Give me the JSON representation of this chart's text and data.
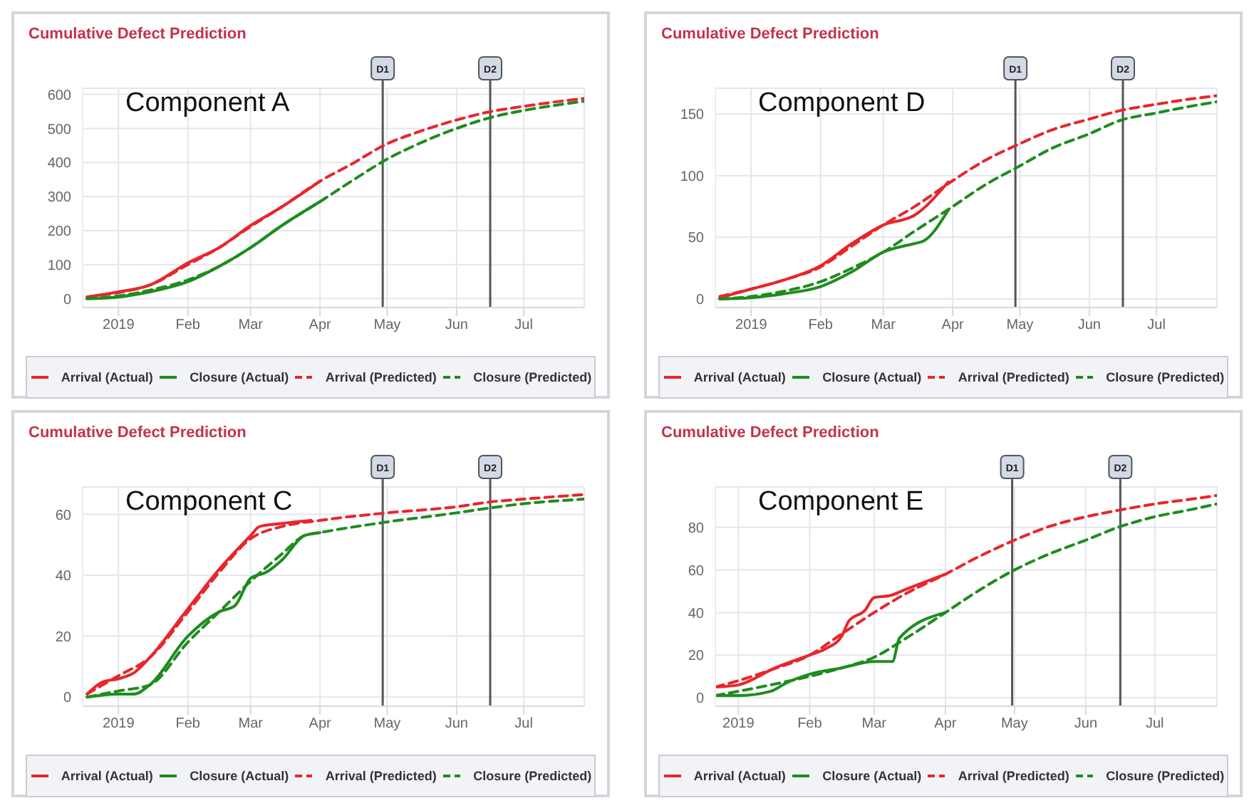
{
  "chart_data": [
    {
      "type": "line",
      "title": "Cumulative Defect Prediction",
      "annotations": [
        "Component A"
      ],
      "xlim": [
        "2018-12-16",
        "2019-07-28"
      ],
      "xticks": [
        {
          "value": "2019-01-01",
          "label": "2019"
        },
        {
          "value": "2019-02-01",
          "label": "Feb"
        },
        {
          "value": "2019-03-01",
          "label": "Mar"
        },
        {
          "value": "2019-04-01",
          "label": "Apr"
        },
        {
          "value": "2019-05-01",
          "label": "May"
        },
        {
          "value": "2019-06-01",
          "label": "Jun"
        },
        {
          "value": "2019-07-01",
          "label": "Jul"
        }
      ],
      "ylim": [
        -26,
        618
      ],
      "yticks": [
        0,
        100,
        200,
        300,
        400,
        500,
        600
      ],
      "grid": true,
      "legend": "bottom",
      "marker": "none",
      "ref_lines": [
        {
          "axis": "x",
          "value": "2019-04-29",
          "label": "D1",
          "color": "#555555"
        },
        {
          "axis": "x",
          "value": "2019-06-16",
          "label": "D2",
          "color": "#555555"
        }
      ],
      "series": [
        {
          "name": "Arrival (Actual)",
          "color": "#e8262b",
          "line_style": "solid",
          "x": [
            "2018-12-18",
            "2019-01-01",
            "2019-01-15",
            "2019-02-01",
            "2019-02-15",
            "2019-03-01",
            "2019-03-15",
            "2019-04-01"
          ],
          "values": [
            5,
            20,
            40,
            105,
            150,
            215,
            270,
            345
          ]
        },
        {
          "name": "Closure (Actual)",
          "color": "#1e8c1e",
          "line_style": "solid",
          "x": [
            "2018-12-18",
            "2019-01-01",
            "2019-01-15",
            "2019-02-01",
            "2019-02-15",
            "2019-03-01",
            "2019-03-15",
            "2019-04-01"
          ],
          "values": [
            0,
            5,
            20,
            50,
            95,
            150,
            215,
            285
          ]
        },
        {
          "name": "Arrival (Predicted)",
          "color": "#e8262b",
          "line_style": "dashed",
          "x": [
            "2018-12-18",
            "2019-01-01",
            "2019-01-15",
            "2019-02-01",
            "2019-02-15",
            "2019-03-01",
            "2019-03-15",
            "2019-04-01",
            "2019-04-15",
            "2019-05-01",
            "2019-05-15",
            "2019-06-01",
            "2019-06-15",
            "2019-07-01",
            "2019-07-15",
            "2019-07-28"
          ],
          "values": [
            5,
            18,
            40,
            100,
            150,
            212,
            270,
            345,
            395,
            455,
            490,
            525,
            548,
            565,
            578,
            588
          ]
        },
        {
          "name": "Closure (Predicted)",
          "color": "#1e8c1e",
          "line_style": "dashed",
          "x": [
            "2018-12-18",
            "2019-01-01",
            "2019-01-15",
            "2019-02-01",
            "2019-02-15",
            "2019-03-01",
            "2019-03-15",
            "2019-04-01",
            "2019-04-15",
            "2019-05-01",
            "2019-05-15",
            "2019-06-01",
            "2019-06-15",
            "2019-07-01",
            "2019-07-15",
            "2019-07-28"
          ],
          "values": [
            0,
            8,
            25,
            55,
            95,
            150,
            215,
            285,
            345,
            410,
            455,
            500,
            530,
            553,
            568,
            580
          ]
        }
      ]
    },
    {
      "type": "line",
      "title": "Cumulative Defect Prediction",
      "annotations": [
        "Component D"
      ],
      "xlim": [
        "2018-12-16",
        "2019-07-28"
      ],
      "xticks": [
        {
          "value": "2019-01-01",
          "label": "2019"
        },
        {
          "value": "2019-02-01",
          "label": "Feb"
        },
        {
          "value": "2019-03-01",
          "label": "Mar"
        },
        {
          "value": "2019-04-01",
          "label": "Apr"
        },
        {
          "value": "2019-05-01",
          "label": "May"
        },
        {
          "value": "2019-06-01",
          "label": "Jun"
        },
        {
          "value": "2019-07-01",
          "label": "Jul"
        }
      ],
      "ylim": [
        -7,
        171
      ],
      "yticks": [
        0,
        50,
        100,
        150
      ],
      "grid": true,
      "legend": "bottom",
      "marker": "none",
      "ref_lines": [
        {
          "axis": "x",
          "value": "2019-04-29",
          "label": "D1",
          "color": "#555555"
        },
        {
          "axis": "x",
          "value": "2019-06-16",
          "label": "D2",
          "color": "#555555"
        }
      ],
      "series": [
        {
          "name": "Arrival (Actual)",
          "color": "#e8262b",
          "line_style": "solid",
          "x": [
            "2018-12-18",
            "2019-01-01",
            "2019-01-15",
            "2019-02-01",
            "2019-02-15",
            "2019-03-01",
            "2019-03-15",
            "2019-03-30"
          ],
          "values": [
            1,
            8,
            15,
            27,
            45,
            60,
            68,
            95
          ]
        },
        {
          "name": "Closure (Actual)",
          "color": "#1e8c1e",
          "line_style": "solid",
          "x": [
            "2018-12-18",
            "2019-01-01",
            "2019-01-15",
            "2019-02-01",
            "2019-02-15",
            "2019-03-01",
            "2019-03-15",
            "2019-03-19",
            "2019-03-30"
          ],
          "values": [
            0,
            1,
            4,
            10,
            22,
            38,
            45,
            47,
            72
          ]
        },
        {
          "name": "Arrival (Predicted)",
          "color": "#e8262b",
          "line_style": "dashed",
          "x": [
            "2018-12-18",
            "2019-01-01",
            "2019-01-15",
            "2019-02-01",
            "2019-02-15",
            "2019-03-01",
            "2019-03-15",
            "2019-04-01",
            "2019-04-15",
            "2019-05-01",
            "2019-05-15",
            "2019-06-01",
            "2019-06-15",
            "2019-07-01",
            "2019-07-15",
            "2019-07-28"
          ],
          "values": [
            2,
            8,
            15,
            26,
            43,
            60,
            75,
            96,
            112,
            126,
            137,
            146,
            153,
            158,
            162,
            165
          ]
        },
        {
          "name": "Closure (Predicted)",
          "color": "#1e8c1e",
          "line_style": "dashed",
          "x": [
            "2018-12-18",
            "2019-01-01",
            "2019-01-15",
            "2019-02-01",
            "2019-02-15",
            "2019-03-01",
            "2019-03-15",
            "2019-04-01",
            "2019-04-15",
            "2019-05-01",
            "2019-05-15",
            "2019-06-01",
            "2019-06-15",
            "2019-07-01",
            "2019-07-15",
            "2019-07-28"
          ],
          "values": [
            0,
            2,
            6,
            14,
            25,
            38,
            55,
            75,
            92,
            108,
            122,
            134,
            145,
            151,
            156,
            160
          ]
        }
      ]
    },
    {
      "type": "line",
      "title": "Cumulative Defect Prediction",
      "annotations": [
        "Component C"
      ],
      "xlim": [
        "2018-12-16",
        "2019-07-28"
      ],
      "xticks": [
        {
          "value": "2019-01-01",
          "label": "2019"
        },
        {
          "value": "2019-02-01",
          "label": "Feb"
        },
        {
          "value": "2019-03-01",
          "label": "Mar"
        },
        {
          "value": "2019-04-01",
          "label": "Apr"
        },
        {
          "value": "2019-05-01",
          "label": "May"
        },
        {
          "value": "2019-06-01",
          "label": "Jun"
        },
        {
          "value": "2019-07-01",
          "label": "Jul"
        }
      ],
      "ylim": [
        -3,
        69
      ],
      "yticks": [
        0,
        20,
        40,
        60
      ],
      "grid": true,
      "legend": "bottom",
      "marker": "none",
      "ref_lines": [
        {
          "axis": "x",
          "value": "2019-04-29",
          "label": "D1",
          "color": "#555555"
        },
        {
          "axis": "x",
          "value": "2019-06-16",
          "label": "D2",
          "color": "#555555"
        }
      ],
      "series": [
        {
          "name": "Arrival (Actual)",
          "color": "#e8262b",
          "line_style": "solid",
          "x": [
            "2018-12-18",
            "2018-12-25",
            "2019-01-01",
            "2019-01-08",
            "2019-01-15",
            "2019-02-01",
            "2019-02-15",
            "2019-03-01",
            "2019-03-05",
            "2019-03-15",
            "2019-03-28"
          ],
          "values": [
            1,
            5,
            6,
            8,
            13,
            29,
            42,
            53,
            56,
            57,
            58
          ]
        },
        {
          "name": "Closure (Actual)",
          "color": "#1e8c1e",
          "line_style": "solid",
          "x": [
            "2018-12-18",
            "2019-01-01",
            "2019-01-08",
            "2019-01-15",
            "2019-02-01",
            "2019-02-15",
            "2019-02-22",
            "2019-03-01",
            "2019-03-08",
            "2019-03-15",
            "2019-03-25",
            "2019-04-01"
          ],
          "values": [
            0,
            1,
            1,
            4,
            20,
            28,
            30,
            39,
            41,
            45,
            53,
            54
          ]
        },
        {
          "name": "Arrival (Predicted)",
          "color": "#e8262b",
          "line_style": "dashed",
          "x": [
            "2018-12-18",
            "2019-01-01",
            "2019-01-15",
            "2019-02-01",
            "2019-02-15",
            "2019-03-01",
            "2019-03-15",
            "2019-04-01",
            "2019-05-01",
            "2019-06-01",
            "2019-06-15",
            "2019-07-01",
            "2019-07-28"
          ],
          "values": [
            1,
            7,
            13,
            28,
            41,
            52,
            56,
            58,
            60.5,
            62.5,
            64,
            65,
            66.5
          ]
        },
        {
          "name": "Closure (Predicted)",
          "color": "#1e8c1e",
          "line_style": "dashed",
          "x": [
            "2018-12-18",
            "2019-01-01",
            "2019-01-15",
            "2019-02-01",
            "2019-02-15",
            "2019-03-01",
            "2019-03-15",
            "2019-03-25",
            "2019-04-01",
            "2019-05-01",
            "2019-06-01",
            "2019-06-15",
            "2019-07-01",
            "2019-07-28"
          ],
          "values": [
            0,
            2,
            4,
            18,
            28,
            38,
            47,
            53,
            54,
            57.5,
            60.5,
            62,
            63.5,
            65
          ]
        }
      ]
    },
    {
      "type": "line",
      "title": "Cumulative Defect Prediction",
      "annotations": [
        "Component E"
      ],
      "xlim": [
        "2018-12-22",
        "2019-07-28"
      ],
      "xticks": [
        {
          "value": "2019-01-01",
          "label": "2019"
        },
        {
          "value": "2019-02-01",
          "label": "Feb"
        },
        {
          "value": "2019-03-01",
          "label": "Mar"
        },
        {
          "value": "2019-04-01",
          "label": "Apr"
        },
        {
          "value": "2019-05-01",
          "label": "May"
        },
        {
          "value": "2019-06-01",
          "label": "Jun"
        },
        {
          "value": "2019-07-01",
          "label": "Jul"
        }
      ],
      "ylim": [
        -4,
        99
      ],
      "yticks": [
        0,
        20,
        40,
        60,
        80
      ],
      "grid": true,
      "legend": "bottom",
      "marker": "none",
      "ref_lines": [
        {
          "axis": "x",
          "value": "2019-04-30",
          "label": "D1",
          "color": "#555555"
        },
        {
          "axis": "x",
          "value": "2019-06-16",
          "label": "D2",
          "color": "#555555"
        }
      ],
      "series": [
        {
          "name": "Arrival (Actual)",
          "color": "#e8262b",
          "line_style": "solid",
          "x": [
            "2018-12-22",
            "2019-01-01",
            "2019-01-08",
            "2019-01-15",
            "2019-02-01",
            "2019-02-08",
            "2019-02-15",
            "2019-02-18",
            "2019-02-25",
            "2019-03-01",
            "2019-03-08",
            "2019-03-15",
            "2019-04-01"
          ],
          "values": [
            5,
            6,
            9,
            13,
            20,
            23,
            29,
            36,
            41,
            47,
            48,
            51,
            58
          ]
        },
        {
          "name": "Closure (Actual)",
          "color": "#1e8c1e",
          "line_style": "solid",
          "x": [
            "2018-12-22",
            "2019-01-01",
            "2019-01-15",
            "2019-01-22",
            "2019-02-01",
            "2019-02-15",
            "2019-03-01",
            "2019-03-09",
            "2019-03-12",
            "2019-04-01"
          ],
          "values": [
            1,
            1,
            3,
            7,
            11,
            14,
            17,
            17,
            28,
            40
          ]
        },
        {
          "name": "Arrival (Predicted)",
          "color": "#e8262b",
          "line_style": "dashed",
          "x": [
            "2018-12-22",
            "2019-01-01",
            "2019-01-15",
            "2019-02-01",
            "2019-02-15",
            "2019-03-01",
            "2019-03-15",
            "2019-04-01",
            "2019-04-15",
            "2019-05-01",
            "2019-05-15",
            "2019-06-01",
            "2019-06-15",
            "2019-07-01",
            "2019-07-15",
            "2019-07-28"
          ],
          "values": [
            5,
            8,
            13,
            20,
            30,
            40,
            49,
            58,
            66,
            74,
            80,
            85,
            88,
            91,
            93,
            95
          ]
        },
        {
          "name": "Closure (Predicted)",
          "color": "#1e8c1e",
          "line_style": "dashed",
          "x": [
            "2018-12-22",
            "2019-01-01",
            "2019-01-15",
            "2019-02-01",
            "2019-02-15",
            "2019-03-01",
            "2019-03-15",
            "2019-04-01",
            "2019-04-15",
            "2019-05-01",
            "2019-05-15",
            "2019-06-01",
            "2019-06-15",
            "2019-07-01",
            "2019-07-15",
            "2019-07-28"
          ],
          "values": [
            1,
            3,
            6,
            10,
            14,
            19,
            28,
            40,
            50,
            60,
            67,
            74,
            80,
            85,
            88,
            91
          ]
        }
      ]
    }
  ]
}
